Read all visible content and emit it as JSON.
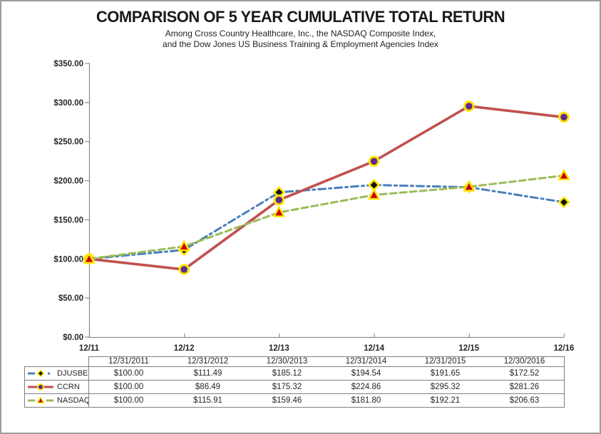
{
  "page": {
    "background": "#ffffff",
    "border_color": "#9c9c9c"
  },
  "header": {
    "title": "COMPARISON OF 5 YEAR CUMULATIVE TOTAL RETURN",
    "subtitle_line1": "Among Cross Country Healthcare, Inc., the NASDAQ Composite Index,",
    "subtitle_line2": "and the Dow Jones US Business Training & Employment Agencies Index"
  },
  "colors": {
    "axis": "#8e8e8e",
    "table_border": "#7f7f7f",
    "text": "#262626",
    "marker_outline_yellow": "#ffe500"
  },
  "chart_data": {
    "type": "line",
    "title": "COMPARISON OF 5 YEAR CUMULATIVE TOTAL RETURN",
    "subtitle": "Among Cross Country Healthcare, Inc., the NASDAQ Composite Index, and the Dow Jones US Business Training & Employment Agencies Index",
    "categories": [
      "12/11",
      "12/12",
      "12/13",
      "12/14",
      "12/15",
      "12/16"
    ],
    "table_header_dates": [
      "12/31/2011",
      "12/31/2012",
      "12/30/2013",
      "12/31/2014",
      "12/31/2015",
      "12/30/2016"
    ],
    "y_tick_labels": [
      "$0.00",
      "$50.00",
      "$100.00",
      "$150.00",
      "$200.00",
      "$250.00",
      "$300.00",
      "$350.00"
    ],
    "ylim": [
      0,
      350
    ],
    "y_step": 50,
    "grid": false,
    "legend_position": "table-left-keys",
    "value_prefix": "$",
    "series": [
      {
        "name": "DJUSBE",
        "values": [
          100.0,
          111.49,
          185.12,
          194.54,
          191.65,
          172.52
        ],
        "line_color": "#4a7ebb",
        "line_style": "dash-dot",
        "line_width": 3,
        "marker": "diamond",
        "marker_fill": "#111111",
        "marker_outline": "#ffe500"
      },
      {
        "name": "CCRN",
        "values": [
          100.0,
          86.49,
          175.32,
          224.86,
          295.32,
          281.26
        ],
        "line_color": "#c0504d",
        "line_style": "solid",
        "line_width": 3.6,
        "marker": "circle",
        "marker_fill": "#5c2d91",
        "marker_outline": "#ffe500"
      },
      {
        "name": "NASDAQ",
        "values": [
          100.0,
          115.91,
          159.46,
          181.8,
          192.21,
          206.63
        ],
        "line_color": "#9bbb59",
        "line_style": "dashed",
        "line_width": 3,
        "marker": "triangle",
        "marker_fill": "#cc0000",
        "marker_outline": "#ffe500"
      }
    ]
  }
}
